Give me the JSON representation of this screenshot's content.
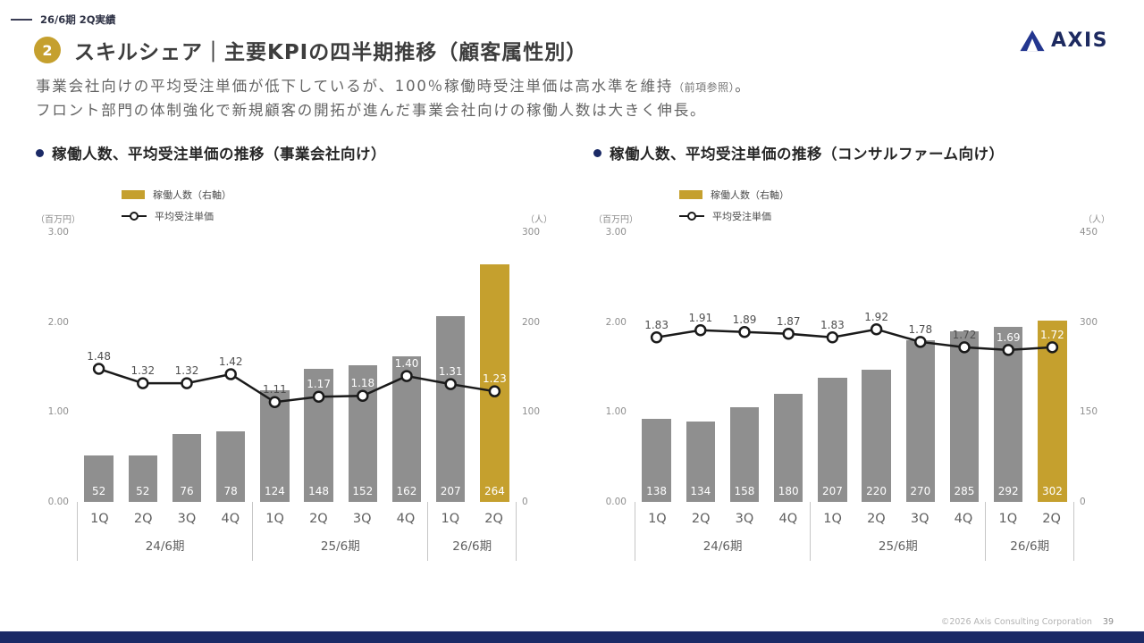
{
  "colors": {
    "gold": "#c5a02e",
    "gray_bar": "#8f8f8f",
    "navy": "#1b2a66",
    "logo_blue": "#23368f",
    "line": "#1a1a1a"
  },
  "header": {
    "tag": "26/6期 2Q実績",
    "section_number": "2",
    "title": "スキルシェア｜主要KPIの四半期推移（顧客属性別）",
    "lead_line1_main": "事業会社向けの平均受注単価が低下しているが、100％稼働時受注単価は高水準を維持",
    "lead_line1_note": "（前項参照）",
    "lead_line1_end": "。",
    "lead_line2": "フロント部門の体制強化で新規顧客の開拓が進んだ事業会社向けの稼働人数は大きく伸長。"
  },
  "logo": {
    "text": "AXIS"
  },
  "chart_data": [
    {
      "type": "bar+line",
      "title": "稼働人数、平均受注単価の推移（事業会社向け）",
      "categories": [
        "1Q",
        "2Q",
        "3Q",
        "4Q",
        "1Q",
        "2Q",
        "3Q",
        "4Q",
        "1Q",
        "2Q"
      ],
      "period_groups": [
        {
          "label": "24/6期",
          "span": 4
        },
        {
          "label": "25/6期",
          "span": 4
        },
        {
          "label": "26/6期",
          "span": 2
        }
      ],
      "bars": {
        "name": "稼働人数（右軸）",
        "axis": "right",
        "values": [
          52,
          52,
          76,
          78,
          124,
          148,
          152,
          162,
          207,
          264
        ],
        "highlight_index": 9
      },
      "line": {
        "name": "平均受注単価",
        "axis": "left",
        "values": [
          1.48,
          1.32,
          1.32,
          1.42,
          1.11,
          1.17,
          1.18,
          1.4,
          1.31,
          1.23
        ]
      },
      "left_axis": {
        "unit": "（百万円）",
        "ticks": [
          "3.00",
          "2.00",
          "1.00",
          "0.00"
        ],
        "max": 3.0
      },
      "right_axis": {
        "unit": "（人）",
        "ticks": [
          "300",
          "200",
          "100",
          "0"
        ],
        "max": 300
      },
      "legend_position": "top-left",
      "grid": false
    },
    {
      "type": "bar+line",
      "title": "稼働人数、平均受注単価の推移（コンサルファーム向け）",
      "categories": [
        "1Q",
        "2Q",
        "3Q",
        "4Q",
        "1Q",
        "2Q",
        "3Q",
        "4Q",
        "1Q",
        "2Q"
      ],
      "period_groups": [
        {
          "label": "24/6期",
          "span": 4
        },
        {
          "label": "25/6期",
          "span": 4
        },
        {
          "label": "26/6期",
          "span": 2
        }
      ],
      "bars": {
        "name": "稼働人数（右軸）",
        "axis": "right",
        "values": [
          138,
          134,
          158,
          180,
          207,
          220,
          270,
          285,
          292,
          302
        ],
        "highlight_index": 9
      },
      "line": {
        "name": "平均受注単価",
        "axis": "left",
        "values": [
          1.83,
          1.91,
          1.89,
          1.87,
          1.83,
          1.92,
          1.78,
          1.72,
          1.69,
          1.72
        ]
      },
      "left_axis": {
        "unit": "（百万円）",
        "ticks": [
          "3.00",
          "2.00",
          "1.00",
          "0.00"
        ],
        "max": 3.0
      },
      "right_axis": {
        "unit": "（人）",
        "ticks": [
          "450",
          "300",
          "150",
          "0"
        ],
        "max": 450
      },
      "legend_position": "top-left",
      "grid": false
    }
  ],
  "footer": {
    "copyright": "©2026 Axis Consulting Corporation",
    "page": "39"
  }
}
